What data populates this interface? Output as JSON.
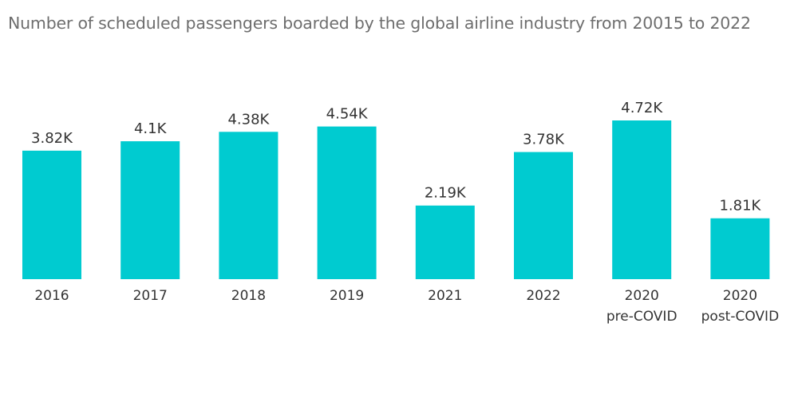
{
  "colors": {
    "bar": "#00cbd0",
    "title": "#6e6e6e",
    "text": "#333333",
    "background": "#ffffff"
  },
  "chart_data": {
    "type": "bar",
    "title": "Number of scheduled passengers boarded by the global airline industry from 20015 to 2022",
    "xlabel": "",
    "ylabel": "",
    "grid": false,
    "ylim": [
      0,
      4.72
    ],
    "unit": "K",
    "categories": [
      [
        "2016"
      ],
      [
        "2017"
      ],
      [
        "2018"
      ],
      [
        "2019"
      ],
      [
        "2021"
      ],
      [
        "2022"
      ],
      [
        "2020",
        "pre-COVID"
      ],
      [
        "2020",
        "post-COVID"
      ]
    ],
    "values": [
      3.82,
      4.1,
      4.38,
      4.54,
      2.19,
      3.78,
      4.72,
      1.81
    ],
    "data_labels": [
      "3.82K",
      "4.1K",
      "4.38K",
      "4.54K",
      "2.19K",
      "3.78K",
      "4.72K",
      "1.81K"
    ]
  }
}
